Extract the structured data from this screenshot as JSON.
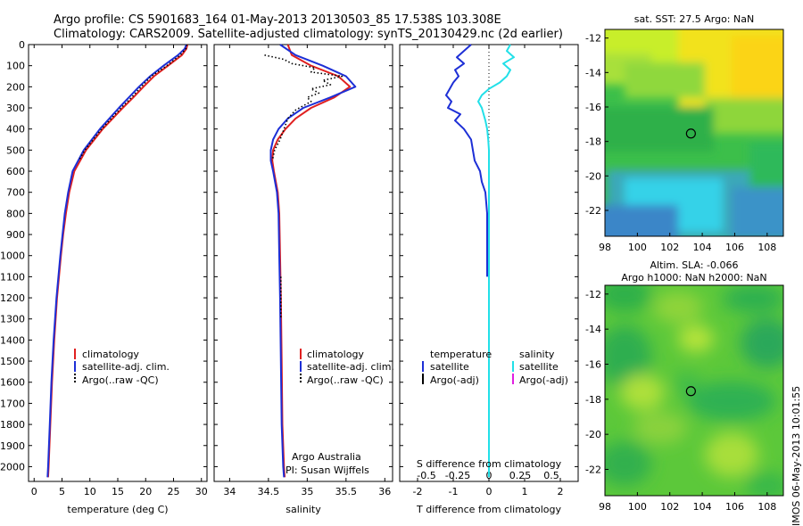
{
  "figure": {
    "title_line1": "Argo profile: CS 5901683_164 01-May-2013 20130503_85 17.538S 103.308E",
    "title_line2": "Climatology: CARS2009. Satellite-adjusted climatology: synTS_20130429.nc (2d earlier)",
    "side_label": "IMOS 06-May-2013 10:01:55"
  },
  "chart_data": [
    {
      "type": "line",
      "panel": "temperature",
      "xlabel": "temperature (deg C)",
      "xlim": [
        -1,
        31
      ],
      "xticks": [
        0,
        5,
        10,
        15,
        20,
        25,
        30
      ],
      "ylim": [
        0,
        2070
      ],
      "yticks": [
        0,
        100,
        200,
        300,
        400,
        500,
        600,
        700,
        800,
        900,
        1000,
        1100,
        1200,
        1300,
        1400,
        1500,
        1600,
        1700,
        1800,
        1900,
        2000
      ],
      "legend": [
        "climatology",
        "satellite-adj. clim.",
        "Argo(..raw -QC)"
      ],
      "legend_colors": [
        "#e02020",
        "#1d2fd6",
        "#000000"
      ],
      "series": [
        {
          "name": "climatology",
          "color": "#e02020",
          "depth": [
            0,
            20,
            50,
            100,
            150,
            200,
            250,
            300,
            400,
            500,
            600,
            700,
            800,
            900,
            1000,
            1200,
            1400,
            1600,
            1800,
            2000,
            2050
          ],
          "values": [
            27.5,
            27.3,
            26.5,
            24.0,
            21.5,
            19.6,
            17.8,
            15.9,
            12.3,
            9.3,
            7.2,
            6.3,
            5.7,
            5.2,
            4.8,
            4.1,
            3.6,
            3.2,
            2.9,
            2.6,
            2.5
          ]
        },
        {
          "name": "satellite-adj. clim.",
          "color": "#1d2fd6",
          "depth": [
            0,
            20,
            50,
            100,
            150,
            200,
            250,
            300,
            400,
            500,
            600,
            700,
            800,
            900,
            1000,
            1200,
            1400,
            1600,
            1800,
            2000,
            2050
          ],
          "values": [
            27.3,
            27.0,
            25.8,
            23.2,
            20.8,
            18.8,
            17.0,
            15.2,
            11.8,
            8.9,
            6.9,
            6.1,
            5.5,
            5.1,
            4.7,
            4.0,
            3.5,
            3.1,
            2.8,
            2.5,
            2.4
          ]
        },
        {
          "name": "Argo(..raw -QC)",
          "color": "#000000",
          "depth": [
            0,
            20,
            50,
            100,
            150,
            200,
            250,
            300,
            400,
            500,
            550
          ],
          "values": [
            27.4,
            27.2,
            26.2,
            23.8,
            21.0,
            19.2,
            17.5,
            15.6,
            12.1,
            9.1,
            8.0
          ]
        }
      ]
    },
    {
      "type": "line",
      "panel": "salinity",
      "xlabel": "salinity",
      "xlim": [
        33.8,
        36.1
      ],
      "xticks": [
        34,
        34.5,
        35,
        35.5,
        36
      ],
      "ylim": [
        0,
        2070
      ],
      "legend": [
        "climatology",
        "satellite-adj. clim.",
        "Argo(..raw -QC)"
      ],
      "legend_colors": [
        "#e02020",
        "#1d2fd6",
        "#000000"
      ],
      "annotation": [
        "Argo Australia",
        "PI: Susan Wijffels"
      ],
      "series": [
        {
          "name": "climatology",
          "color": "#e02020",
          "depth": [
            0,
            50,
            100,
            150,
            200,
            250,
            300,
            350,
            400,
            450,
            500,
            550,
            600,
            700,
            800,
            1000,
            1200,
            1500,
            1800,
            2000,
            2050
          ],
          "values": [
            34.75,
            34.8,
            35.05,
            35.4,
            35.55,
            35.35,
            35.05,
            34.85,
            34.72,
            34.62,
            34.56,
            34.55,
            34.57,
            34.62,
            34.64,
            34.65,
            34.66,
            34.67,
            34.68,
            34.7,
            34.71
          ]
        },
        {
          "name": "satellite-adj. clim.",
          "color": "#1d2fd6",
          "depth": [
            0,
            50,
            100,
            150,
            200,
            250,
            300,
            350,
            400,
            450,
            500,
            550,
            600,
            700,
            800,
            1000,
            1200,
            1500,
            1800,
            2000,
            2050
          ],
          "values": [
            34.65,
            34.85,
            35.2,
            35.5,
            35.62,
            35.3,
            34.95,
            34.75,
            34.63,
            34.56,
            34.53,
            34.53,
            34.56,
            34.61,
            34.63,
            34.64,
            34.65,
            34.66,
            34.67,
            34.69,
            34.7
          ]
        },
        {
          "name": "Argo(..raw -QC)",
          "color": "#000000",
          "depth": [
            50,
            70,
            90,
            110,
            130,
            150,
            170,
            190,
            210,
            230,
            250,
            270,
            290,
            310,
            330,
            350,
            400,
            450,
            500,
            550
          ],
          "values": [
            34.45,
            34.7,
            34.8,
            35.1,
            35.05,
            35.45,
            35.2,
            35.3,
            35.05,
            35.15,
            35.0,
            35.05,
            34.95,
            34.85,
            34.8,
            34.75,
            34.7,
            34.65,
            34.58,
            34.55
          ]
        },
        {
          "name": "Argo(..raw -QC) deep",
          "color": "#000000",
          "depth": [
            1100,
            1150,
            1200,
            1250,
            1300
          ],
          "values": [
            34.66,
            34.66,
            34.66,
            34.66,
            34.66
          ]
        }
      ]
    },
    {
      "type": "line",
      "panel": "difference",
      "xlabel": "T difference from climatology",
      "top_label": "S difference from climatology",
      "xlim": [
        -2.5,
        2.5
      ],
      "xticks": [
        -2,
        -1,
        0,
        1,
        2
      ],
      "xticks_S": [
        "-0.5",
        "-0.25",
        "0",
        "0.25",
        "0.5"
      ],
      "ylim": [
        0,
        2070
      ],
      "legend_left_title": "temperature",
      "legend_right_title": "salinity",
      "legend": [
        "satellite",
        "Argo(-adj)",
        "satellite",
        "Argo(-adj)"
      ],
      "legend_colors": [
        "#1d2fd6",
        "#000000",
        "#22e0e8",
        "#e020e0"
      ],
      "series": [
        {
          "name": "temperature satellite",
          "color": "#1d2fd6",
          "depth": [
            0,
            30,
            60,
            90,
            120,
            150,
            180,
            210,
            240,
            270,
            300,
            330,
            360,
            400,
            450,
            500,
            550,
            600,
            650,
            700,
            800,
            1000,
            1100
          ],
          "values": [
            -0.5,
            -0.7,
            -0.9,
            -0.7,
            -0.95,
            -0.85,
            -1.0,
            -1.1,
            -1.2,
            -1.05,
            -1.15,
            -0.8,
            -0.95,
            -0.7,
            -0.5,
            -0.45,
            -0.4,
            -0.25,
            -0.2,
            -0.1,
            -0.05,
            -0.05,
            -0.05
          ]
        },
        {
          "name": "salinity satellite",
          "color": "#22e0e8",
          "depth": [
            0,
            30,
            60,
            90,
            120,
            150,
            180,
            210,
            240,
            270,
            300,
            330,
            360,
            400,
            450,
            500,
            550,
            600,
            650,
            700,
            800,
            1000,
            1200,
            1500,
            1800,
            2000,
            2050
          ],
          "values": [
            0.6,
            0.5,
            0.7,
            0.4,
            0.6,
            0.5,
            0.3,
            0.0,
            -0.2,
            -0.3,
            -0.2,
            -0.15,
            -0.1,
            -0.05,
            -0.02,
            0.0,
            0.0,
            0.0,
            0.0,
            0.0,
            0.0,
            0.0,
            0.0,
            0.0,
            0.0,
            0.0,
            0.0
          ]
        }
      ]
    },
    {
      "type": "heatmap",
      "panel": "SST map",
      "title": "sat. SST: 27.5  Argo: NaN",
      "xlim": [
        98,
        109
      ],
      "ylim": [
        -23.5,
        -11.5
      ],
      "xticks": [
        98,
        100,
        102,
        104,
        106,
        108
      ],
      "yticks": [
        -12,
        -14,
        -16,
        -18,
        -20,
        -22
      ],
      "marker": {
        "lon": 103.3,
        "lat": -17.54
      }
    },
    {
      "type": "heatmap",
      "panel": "SLA map",
      "title_line1": "Altim. SLA: -0.066",
      "title_line2": "Argo h1000: NaN h2000: NaN",
      "xlim": [
        98,
        109
      ],
      "ylim": [
        -23.5,
        -11.5
      ],
      "xticks": [
        98,
        100,
        102,
        104,
        106,
        108
      ],
      "yticks": [
        -12,
        -14,
        -16,
        -18,
        -20,
        -22
      ],
      "marker": {
        "lon": 103.3,
        "lat": -17.54
      }
    }
  ]
}
